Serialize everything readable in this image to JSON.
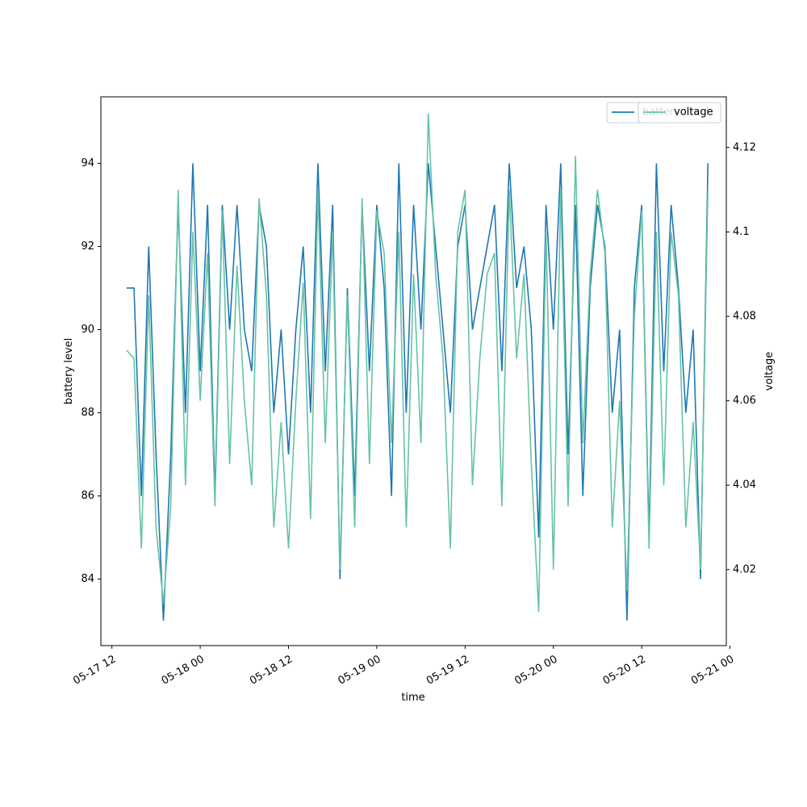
{
  "chart_data": {
    "type": "line",
    "xlabel": "time",
    "ylabel": "battery level",
    "y2label": "voltage",
    "x": [
      "05-17 14",
      "05-17 15",
      "05-17 16",
      "05-17 17",
      "05-17 18",
      "05-17 19",
      "05-17 20",
      "05-17 21",
      "05-17 22",
      "05-17 23",
      "05-18 00",
      "05-18 01",
      "05-18 02",
      "05-18 03",
      "05-18 04",
      "05-18 05",
      "05-18 06",
      "05-18 07",
      "05-18 08",
      "05-18 09",
      "05-18 10",
      "05-18 11",
      "05-18 12",
      "05-18 13",
      "05-18 14",
      "05-18 15",
      "05-18 16",
      "05-18 17",
      "05-18 18",
      "05-18 19",
      "05-18 20",
      "05-18 21",
      "05-18 22",
      "05-18 23",
      "05-19 00",
      "05-19 01",
      "05-19 02",
      "05-19 03",
      "05-19 04",
      "05-19 05",
      "05-19 06",
      "05-19 07",
      "05-19 08",
      "05-19 09",
      "05-19 10",
      "05-19 11",
      "05-19 12",
      "05-19 13",
      "05-19 14",
      "05-19 15",
      "05-19 16",
      "05-19 17",
      "05-19 18",
      "05-19 19",
      "05-19 20",
      "05-19 21",
      "05-19 22",
      "05-19 23",
      "05-20 00",
      "05-20 01",
      "05-20 02",
      "05-20 03",
      "05-20 04",
      "05-20 05",
      "05-20 06",
      "05-20 07",
      "05-20 08",
      "05-20 09",
      "05-20 10",
      "05-20 11",
      "05-20 12",
      "05-20 13",
      "05-20 14",
      "05-20 15",
      "05-20 16",
      "05-20 17",
      "05-20 18",
      "05-20 19",
      "05-20 20",
      "05-20 21"
    ],
    "series": [
      {
        "name": "battery level",
        "color": "#1f77b4",
        "values": [
          91,
          91,
          86,
          92,
          87,
          83,
          87,
          93,
          88,
          94,
          89,
          93,
          86,
          93,
          90,
          93,
          90,
          89,
          93,
          92,
          88,
          90,
          87,
          90,
          92,
          88,
          94,
          89,
          93,
          84,
          91,
          86,
          93,
          89,
          93,
          91,
          86,
          94,
          88,
          93,
          90,
          94,
          92,
          90,
          88,
          92,
          93,
          90,
          91,
          92,
          93,
          89,
          94,
          91,
          92,
          90,
          85,
          93,
          90,
          94,
          87,
          93,
          86,
          91,
          93,
          92,
          88,
          90,
          83,
          91,
          93,
          85,
          94,
          89,
          93,
          91,
          88,
          90,
          84,
          94
        ]
      },
      {
        "name": "voltage",
        "color": "#66c2a5",
        "axis": "y2",
        "values": [
          4.072,
          4.07,
          4.025,
          4.085,
          4.03,
          4.012,
          4.035,
          4.11,
          4.04,
          4.1,
          4.06,
          4.095,
          4.035,
          4.105,
          4.045,
          4.092,
          4.06,
          4.04,
          4.108,
          4.085,
          4.03,
          4.055,
          4.025,
          4.06,
          4.088,
          4.032,
          4.11,
          4.05,
          4.1,
          4.02,
          4.085,
          4.03,
          4.108,
          4.045,
          4.105,
          4.095,
          4.05,
          4.1,
          4.03,
          4.09,
          4.05,
          4.128,
          4.09,
          4.07,
          4.025,
          4.1,
          4.11,
          4.04,
          4.07,
          4.09,
          4.095,
          4.035,
          4.11,
          4.07,
          4.09,
          4.045,
          4.01,
          4.1,
          4.02,
          4.11,
          4.035,
          4.118,
          4.05,
          4.09,
          4.11,
          4.095,
          4.03,
          4.06,
          4.015,
          4.08,
          4.105,
          4.025,
          4.1,
          4.04,
          4.1,
          4.085,
          4.03,
          4.055,
          4.02,
          4.11
        ]
      }
    ],
    "xlim": [
      "05-17 10:30",
      "05-20 23:30"
    ],
    "xticks": [
      "05-17 12",
      "05-18 00",
      "05-18 12",
      "05-19 00",
      "05-19 12",
      "05-20 00",
      "05-20 12",
      "05-21 00"
    ],
    "ylim": [
      82.4,
      95.6
    ],
    "yticks": [
      84,
      86,
      88,
      90,
      92,
      94
    ],
    "y2lim": [
      4.002,
      4.132
    ],
    "y2ticks": [
      4.02,
      4.04,
      4.06,
      4.08,
      4.1,
      4.12
    ],
    "legend": "upper right"
  }
}
